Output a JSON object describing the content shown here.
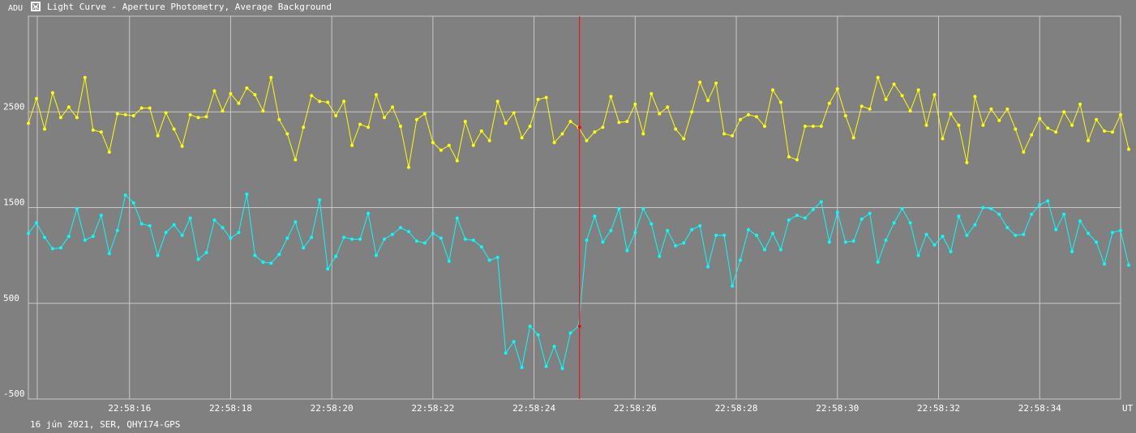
{
  "header": {
    "ylabel": "ADU",
    "title": "Light Curve - Aperture Photometry, Average Background",
    "icon": "light-curve-icon"
  },
  "footer": {
    "text": "16 jún 2021, SER, QHY174-GPS"
  },
  "chart_data": {
    "type": "line",
    "xlabel": "UT",
    "ylabel": "ADU",
    "grid": true,
    "ylim": [
      -500,
      3500
    ],
    "xlim": [
      "22:58:14.0",
      "22:58:35.6"
    ],
    "y_ticks": [
      2500,
      1500,
      500,
      -500
    ],
    "x_ticks": [
      "22:58:16",
      "22:58:18",
      "22:58:20",
      "22:58:22",
      "22:58:24",
      "22:58:26",
      "22:58:28",
      "22:58:30",
      "22:58:32",
      "22:58:34"
    ],
    "cursor_time": "22:58:24.9",
    "colors": {
      "series1": "#ffff00",
      "series2": "#00ffff",
      "cursor": "#ff0000",
      "grid": "#c8c8c8",
      "background": "#808080"
    },
    "x_start": "22:58:14.0",
    "x_step_s": 0.16,
    "series": [
      {
        "values": [
          2380,
          2640,
          2320,
          2700,
          2440,
          2550,
          2440,
          2860,
          2310,
          2290,
          2080,
          2480,
          2470,
          2460,
          2540,
          2540,
          2250,
          2490,
          2320,
          2140,
          2470,
          2440,
          2450,
          2720,
          2510,
          2690,
          2590,
          2750,
          2680,
          2510,
          2860,
          2420,
          2270,
          2000,
          2340,
          2670,
          2610,
          2600,
          2460,
          2610,
          2150,
          2370,
          2340,
          2680,
          2440,
          2550,
          2350,
          1920,
          2420,
          2480,
          2180,
          2100,
          2150,
          1990,
          2400,
          2150,
          2300,
          2200,
          2610,
          2380,
          2490,
          2230,
          2350,
          2630,
          2650,
          2180,
          2270,
          2400,
          2340,
          2200,
          2290,
          2340,
          2660,
          2390,
          2400,
          2580,
          2270,
          2690,
          2480,
          2550,
          2320,
          2220,
          2500,
          2810,
          2620,
          2800,
          2270,
          2250,
          2420,
          2470,
          2450,
          2350,
          2730,
          2600,
          2030,
          2000,
          2350,
          2350,
          2350,
          2590,
          2740,
          2460,
          2230,
          2560,
          2530,
          2860,
          2630,
          2790,
          2670,
          2510,
          2730,
          2360,
          2680,
          2220,
          2480,
          2360,
          1970,
          2660,
          2360,
          2530,
          2410,
          2530,
          2320,
          2080,
          2260,
          2430,
          2330,
          2290,
          2500,
          2360,
          2580,
          2200,
          2420,
          2300,
          2290,
          2470,
          2110
        ]
      },
      {
        "values": [
          1230,
          1340,
          1190,
          1070,
          1080,
          1200,
          1490,
          1160,
          1200,
          1420,
          1020,
          1260,
          1630,
          1550,
          1330,
          1310,
          1000,
          1240,
          1320,
          1210,
          1390,
          960,
          1030,
          1370,
          1290,
          1180,
          1240,
          1640,
          1000,
          930,
          920,
          1010,
          1180,
          1350,
          1080,
          1190,
          1580,
          860,
          990,
          1190,
          1170,
          1170,
          1440,
          1000,
          1170,
          1220,
          1290,
          1250,
          1150,
          1130,
          1230,
          1180,
          940,
          1390,
          1170,
          1160,
          1090,
          950,
          980,
          -20,
          100,
          -170,
          260,
          170,
          -160,
          50,
          -180,
          190,
          260,
          1160,
          1410,
          1140,
          1260,
          1490,
          1050,
          1240,
          1490,
          1330,
          990,
          1260,
          1100,
          1130,
          1270,
          1310,
          880,
          1210,
          1210,
          680,
          950,
          1270,
          1210,
          1060,
          1230,
          1060,
          1370,
          1420,
          1390,
          1480,
          1560,
          1140,
          1450,
          1140,
          1150,
          1380,
          1440,
          930,
          1160,
          1340,
          1490,
          1340,
          1000,
          1220,
          1110,
          1200,
          1040,
          1410,
          1210,
          1320,
          1500,
          1490,
          1430,
          1290,
          1210,
          1220,
          1430,
          1530,
          1570,
          1270,
          1430,
          1040,
          1360,
          1230,
          1140,
          910,
          1240,
          1260,
          900
        ]
      }
    ]
  }
}
